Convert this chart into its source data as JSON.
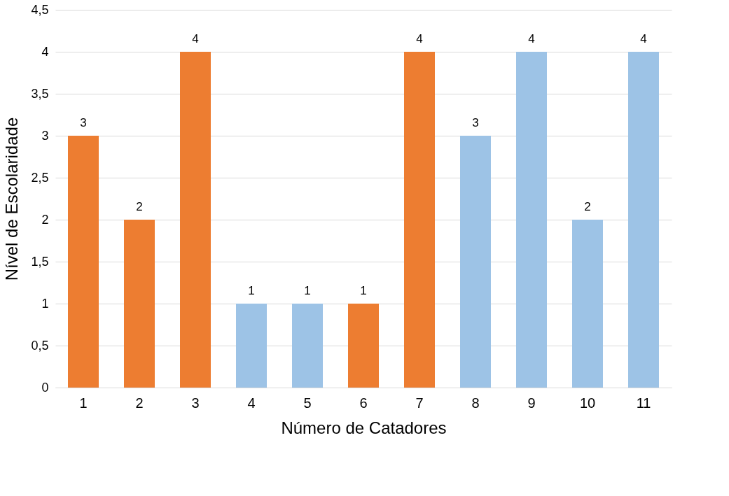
{
  "chart_data": {
    "type": "bar",
    "xlabel": "Número de Catadores",
    "ylabel": "Nível de Escolaridade",
    "categories": [
      "1",
      "2",
      "3",
      "4",
      "5",
      "6",
      "7",
      "8",
      "9",
      "10",
      "11"
    ],
    "values": [
      3,
      2,
      4,
      1,
      1,
      1,
      4,
      3,
      4,
      2,
      4
    ],
    "colors": [
      "#ed7d31",
      "#ed7d31",
      "#ed7d31",
      "#9dc3e6",
      "#9dc3e6",
      "#ed7d31",
      "#ed7d31",
      "#9dc3e6",
      "#9dc3e6",
      "#9dc3e6",
      "#9dc3e6"
    ],
    "ylim": [
      0,
      4.5
    ],
    "yticks": [
      0,
      {
        "value": 0.5,
        "label": "0,5"
      },
      1,
      {
        "value": 1.5,
        "label": "1,5"
      },
      2,
      {
        "value": 2.5,
        "label": "2,5"
      },
      3,
      {
        "value": 3.5,
        "label": "3,5"
      },
      4,
      {
        "value": 4.5,
        "label": "4,5"
      }
    ],
    "grid": "y",
    "data_labels": true
  }
}
